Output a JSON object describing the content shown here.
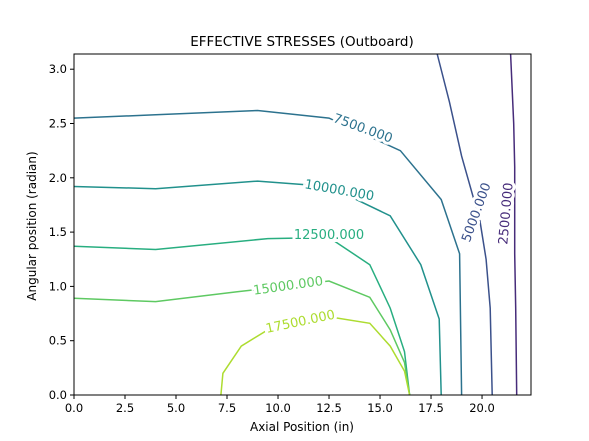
{
  "chart_data": {
    "type": "contour",
    "title": "EFFECTIVE STRESSES (Outboard)",
    "xlabel": "Axial Position (in)",
    "ylabel": "Angular position (radian)",
    "xlim": [
      0,
      22.4
    ],
    "ylim": [
      0,
      3.14
    ],
    "xticks": [
      0.0,
      2.5,
      5.0,
      7.5,
      10.0,
      12.5,
      15.0,
      17.5,
      20.0
    ],
    "xtick_labels": [
      "0.0",
      "2.5",
      "5.0",
      "7.5",
      "10.0",
      "12.5",
      "15.0",
      "17.5",
      "20.0"
    ],
    "yticks": [
      0.0,
      0.5,
      1.0,
      1.5,
      2.0,
      2.5,
      3.0
    ],
    "ytick_labels": [
      "0.0",
      "0.5",
      "1.0",
      "1.5",
      "2.0",
      "2.5",
      "3.0"
    ],
    "grid": false,
    "levels": [
      {
        "value": 2500,
        "label": "2500.000",
        "color": "#472c7a",
        "points": [
          [
            21.4,
            3.14
          ],
          [
            21.55,
            2.5
          ],
          [
            21.6,
            2.1
          ],
          [
            21.6,
            1.3
          ],
          [
            21.65,
            0.8
          ],
          [
            21.7,
            0.0
          ]
        ],
        "label_at": [
          21.2,
          1.67
        ],
        "label_angle": -85
      },
      {
        "value": 5000,
        "label": "5000.000",
        "color": "#3b518b",
        "points": [
          [
            17.8,
            3.14
          ],
          [
            18.4,
            2.7
          ],
          [
            19.0,
            2.2
          ],
          [
            19.9,
            1.6
          ],
          [
            20.2,
            1.25
          ],
          [
            20.4,
            0.8
          ],
          [
            20.5,
            0.0
          ]
        ],
        "label_at": [
          19.75,
          1.68
        ],
        "label_angle": -70
      },
      {
        "value": 7500,
        "label": "7500.000",
        "color": "#2c728e",
        "points": [
          [
            0.0,
            2.55
          ],
          [
            4.0,
            2.58
          ],
          [
            9.0,
            2.62
          ],
          [
            12.5,
            2.55
          ],
          [
            16.0,
            2.25
          ],
          [
            18.0,
            1.8
          ],
          [
            18.9,
            1.3
          ],
          [
            19.0,
            0.0
          ]
        ],
        "label_at": [
          14.15,
          2.45
        ],
        "label_angle": 20
      },
      {
        "value": 10000,
        "label": "10000.000",
        "color": "#21918c",
        "points": [
          [
            0.0,
            1.92
          ],
          [
            4.0,
            1.9
          ],
          [
            9.0,
            1.97
          ],
          [
            12.5,
            1.92
          ],
          [
            15.5,
            1.65
          ],
          [
            17.0,
            1.2
          ],
          [
            17.9,
            0.7
          ],
          [
            18.0,
            0.0
          ]
        ],
        "label_at": [
          13.0,
          1.88
        ],
        "label_angle": 10
      },
      {
        "value": 12500,
        "label": "12500.000",
        "color": "#28ae80",
        "points": [
          [
            0.0,
            1.37
          ],
          [
            4.0,
            1.34
          ],
          [
            9.5,
            1.44
          ],
          [
            12.5,
            1.45
          ],
          [
            14.5,
            1.2
          ],
          [
            15.5,
            0.8
          ],
          [
            16.2,
            0.4
          ],
          [
            16.45,
            0.0
          ]
        ],
        "label_at": [
          12.5,
          1.47
        ],
        "label_angle": 0
      },
      {
        "value": 15000,
        "label": "15000.000",
        "color": "#5ec962",
        "points": [
          [
            0.0,
            0.89
          ],
          [
            4.0,
            0.86
          ],
          [
            8.0,
            0.95
          ],
          [
            12.5,
            1.05
          ],
          [
            14.5,
            0.9
          ],
          [
            15.5,
            0.6
          ],
          [
            16.2,
            0.3
          ],
          [
            16.45,
            0.0
          ]
        ],
        "label_at": [
          10.5,
          1.0
        ],
        "label_angle": -8
      },
      {
        "value": 17500,
        "label": "17500.000",
        "color": "#addc30",
        "points": [
          [
            7.2,
            0.0
          ],
          [
            7.3,
            0.2
          ],
          [
            8.2,
            0.45
          ],
          [
            9.5,
            0.6
          ],
          [
            12.5,
            0.72
          ],
          [
            14.5,
            0.66
          ],
          [
            15.5,
            0.45
          ],
          [
            16.2,
            0.22
          ],
          [
            16.45,
            0.0
          ]
        ],
        "label_at": [
          11.1,
          0.67
        ],
        "label_angle": -12
      }
    ]
  }
}
